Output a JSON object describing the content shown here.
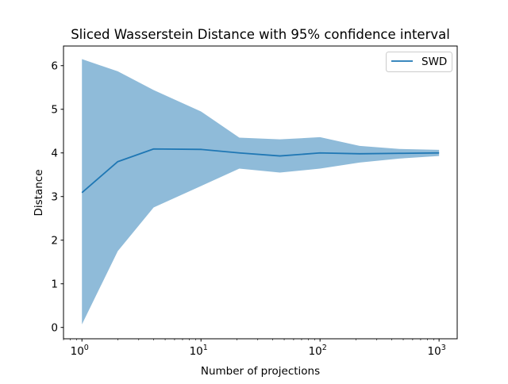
{
  "chart_data": {
    "type": "line",
    "title": "Sliced Wasserstein Distance with 95% confidence interval",
    "xlabel": "Number of projections",
    "ylabel": "Distance",
    "xscale": "log",
    "xlim": [
      0.7,
      1420
    ],
    "ylim": [
      -0.26,
      6.45
    ],
    "x_ticks": [
      {
        "value": 1,
        "base": "10",
        "exp": "0"
      },
      {
        "value": 10,
        "base": "10",
        "exp": "1"
      },
      {
        "value": 100,
        "base": "10",
        "exp": "2"
      },
      {
        "value": 1000,
        "base": "10",
        "exp": "3"
      }
    ],
    "y_ticks": [
      "0",
      "1",
      "2",
      "3",
      "4",
      "5",
      "6"
    ],
    "grid": false,
    "legend_position": "top-right",
    "x": [
      1,
      2,
      4,
      10,
      21,
      46,
      100,
      215,
      464,
      1000
    ],
    "series": [
      {
        "name": "SWD",
        "color": "#1f77b4",
        "values": [
          3.09,
          3.8,
          4.09,
          4.08,
          4.0,
          3.93,
          4.0,
          3.98,
          3.99,
          4.0
        ]
      }
    ],
    "confidence_band": {
      "color": "#1f77b4",
      "opacity": 0.5,
      "upper": [
        6.15,
        5.87,
        5.44,
        4.95,
        4.35,
        4.31,
        4.36,
        4.16,
        4.09,
        4.07
      ],
      "lower": [
        0.07,
        1.75,
        2.75,
        3.24,
        3.64,
        3.55,
        3.64,
        3.78,
        3.87,
        3.93
      ]
    }
  }
}
